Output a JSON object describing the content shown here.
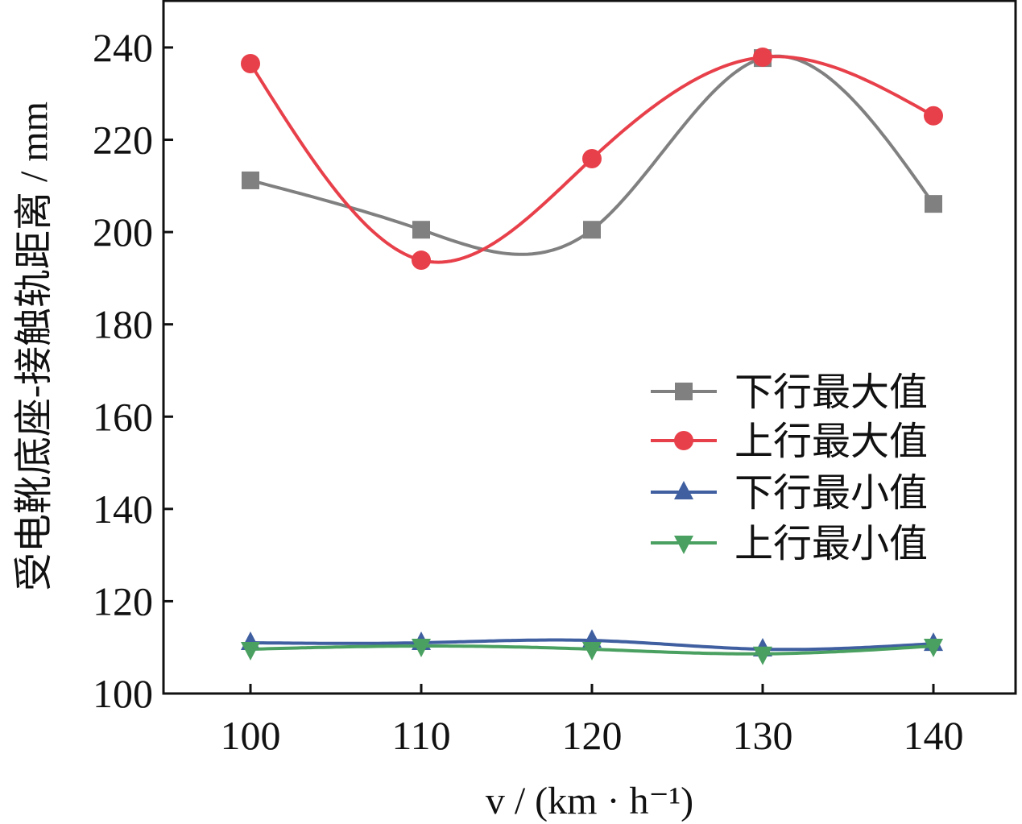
{
  "chart_data": {
    "type": "line",
    "title": "",
    "xlabel": "v / (km · h⁻¹)",
    "ylabel": "受电靴底座-接触轨距离 / mm",
    "x": [
      100,
      110,
      120,
      130,
      140
    ],
    "xlim": [
      95,
      145
    ],
    "ylim": [
      100,
      250
    ],
    "xticks": [
      "100",
      "110",
      "120",
      "130",
      "140"
    ],
    "yticks": [
      "100",
      "120",
      "140",
      "160",
      "180",
      "200",
      "220",
      "240"
    ],
    "grid": false,
    "legend_position": "right-middle",
    "series": [
      {
        "name": "下行最大值",
        "color": "#808080",
        "marker": "square",
        "values": [
          211.2,
          200.5,
          200.5,
          237.7,
          206.1
        ]
      },
      {
        "name": "上行最大值",
        "color": "#e8404a",
        "marker": "circle",
        "values": [
          236.5,
          193.9,
          215.9,
          237.9,
          225.2
        ]
      },
      {
        "name": "下行最小值",
        "color": "#3f5fa0",
        "marker": "triangle-up",
        "values": [
          111.0,
          111.0,
          111.5,
          109.6,
          110.8
        ]
      },
      {
        "name": "上行最小值",
        "color": "#4aa060",
        "marker": "triangle-down",
        "values": [
          109.6,
          110.3,
          109.6,
          108.6,
          110.3
        ]
      }
    ]
  }
}
